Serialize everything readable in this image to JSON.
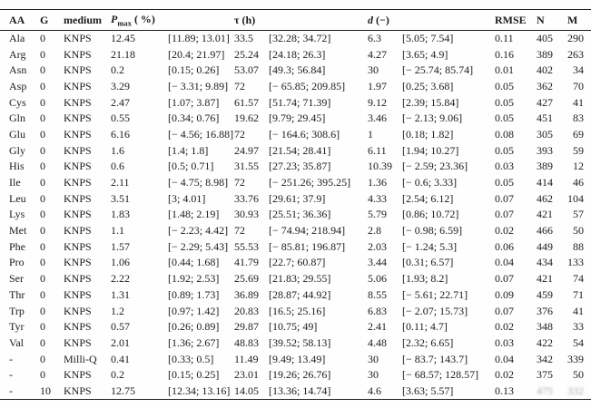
{
  "table": {
    "header": {
      "aa": "AA",
      "g": "G",
      "medium": "medium",
      "pmax_symbol": "P",
      "pmax_sub": "max",
      "pmax_unit": " ( %)",
      "tau_symbol": "τ",
      "tau_unit": " (h)",
      "d_symbol": "d",
      "d_unit": " (−)",
      "rmse": "RMSE",
      "n": "N",
      "m": "M"
    },
    "rows": [
      {
        "aa": "Ala",
        "g": "0",
        "medium": "KNPS",
        "pmax": "12.45",
        "pmax_ci": "[11.89; 13.01]",
        "tau": "33.5",
        "tau_ci": "[32.28; 34.72]",
        "d": "6.3",
        "d_ci": "[5.05; 7.54]",
        "rmse": "0.11",
        "n": "405",
        "m": "290"
      },
      {
        "aa": "Arg",
        "g": "0",
        "medium": "KNPS",
        "pmax": "21.18",
        "pmax_ci": "[20.4; 21.97]",
        "tau": "25.24",
        "tau_ci": "[24.18; 26.3]",
        "d": "4.27",
        "d_ci": "[3.65; 4.9]",
        "rmse": "0.16",
        "n": "389",
        "m": "263"
      },
      {
        "aa": "Asn",
        "g": "0",
        "medium": "KNPS",
        "pmax": "0.2",
        "pmax_ci": "[0.15; 0.26]",
        "tau": "53.07",
        "tau_ci": "[49.3; 56.84]",
        "d": "30",
        "d_ci": "[− 25.74; 85.74]",
        "rmse": "0.01",
        "n": "402",
        "m": "34"
      },
      {
        "aa": "Asp",
        "g": "0",
        "medium": "KNPS",
        "pmax": "3.29",
        "pmax_ci": "[− 3.31; 9.89]",
        "tau": "72",
        "tau_ci": "[− 65.85; 209.85]",
        "d": "1.97",
        "d_ci": "[0.25; 3.68]",
        "rmse": "0.05",
        "n": "362",
        "m": "70"
      },
      {
        "aa": "Cys",
        "g": "0",
        "medium": "KNPS",
        "pmax": "2.47",
        "pmax_ci": "[1.07; 3.87]",
        "tau": "61.57",
        "tau_ci": "[51.74; 71.39]",
        "d": "9.12",
        "d_ci": "[2.39; 15.84]",
        "rmse": "0.05",
        "n": "427",
        "m": "41"
      },
      {
        "aa": "Gln",
        "g": "0",
        "medium": "KNPS",
        "pmax": "0.55",
        "pmax_ci": "[0.34; 0.76]",
        "tau": "19.62",
        "tau_ci": "[9.79; 29.45]",
        "d": "3.46",
        "d_ci": "[− 2.13; 9.06]",
        "rmse": "0.05",
        "n": "451",
        "m": "83"
      },
      {
        "aa": "Glu",
        "g": "0",
        "medium": "KNPS",
        "pmax": "6.16",
        "pmax_ci": "[− 4.56; 16.88]",
        "tau": "72",
        "tau_ci": "[− 164.6; 308.6]",
        "d": "1",
        "d_ci": "[0.18; 1.82]",
        "rmse": "0.08",
        "n": "305",
        "m": "69"
      },
      {
        "aa": "Gly",
        "g": "0",
        "medium": "KNPS",
        "pmax": "1.6",
        "pmax_ci": "[1.4; 1.8]",
        "tau": "24.97",
        "tau_ci": "[21.54; 28.41]",
        "d": "6.11",
        "d_ci": "[1.94; 10.27]",
        "rmse": "0.05",
        "n": "393",
        "m": "59"
      },
      {
        "aa": "His",
        "g": "0",
        "medium": "KNPS",
        "pmax": "0.6",
        "pmax_ci": "[0.5; 0.71]",
        "tau": "31.55",
        "tau_ci": "[27.23; 35.87]",
        "d": "10.39",
        "d_ci": "[− 2.59; 23.36]",
        "rmse": "0.03",
        "n": "389",
        "m": "12"
      },
      {
        "aa": "Ile",
        "g": "0",
        "medium": "KNPS",
        "pmax": "2.11",
        "pmax_ci": "[− 4.75; 8.98]",
        "tau": "72",
        "tau_ci": "[− 251.26; 395.25]",
        "d": "1.36",
        "d_ci": "[− 0.6; 3.33]",
        "rmse": "0.05",
        "n": "414",
        "m": "46"
      },
      {
        "aa": "Leu",
        "g": "0",
        "medium": "KNPS",
        "pmax": "3.51",
        "pmax_ci": "[3; 4.01]",
        "tau": "33.76",
        "tau_ci": "[29.61; 37.9]",
        "d": "4.33",
        "d_ci": "[2.54; 6.12]",
        "rmse": "0.07",
        "n": "462",
        "m": "104"
      },
      {
        "aa": "Lys",
        "g": "0",
        "medium": "KNPS",
        "pmax": "1.83",
        "pmax_ci": "[1.48; 2.19]",
        "tau": "30.93",
        "tau_ci": "[25.51; 36.36]",
        "d": "5.79",
        "d_ci": "[0.86; 10.72]",
        "rmse": "0.07",
        "n": "421",
        "m": "57"
      },
      {
        "aa": "Met",
        "g": "0",
        "medium": "KNPS",
        "pmax": "1.1",
        "pmax_ci": "[− 2.23; 4.42]",
        "tau": "72",
        "tau_ci": "[− 74.94; 218.94]",
        "d": "2.8",
        "d_ci": "[− 0.98; 6.59]",
        "rmse": "0.02",
        "n": "466",
        "m": "50"
      },
      {
        "aa": "Phe",
        "g": "0",
        "medium": "KNPS",
        "pmax": "1.57",
        "pmax_ci": "[− 2.29; 5.43]",
        "tau": "55.53",
        "tau_ci": "[− 85.81; 196.87]",
        "d": "2.03",
        "d_ci": "[− 1.24; 5.3]",
        "rmse": "0.06",
        "n": "449",
        "m": "88"
      },
      {
        "aa": "Pro",
        "g": "0",
        "medium": "KNPS",
        "pmax": "1.06",
        "pmax_ci": "[0.44; 1.68]",
        "tau": "41.79",
        "tau_ci": "[22.7; 60.87]",
        "d": "3.44",
        "d_ci": "[0.31; 6.57]",
        "rmse": "0.04",
        "n": "434",
        "m": "133"
      },
      {
        "aa": "Ser",
        "g": "0",
        "medium": "KNPS",
        "pmax": "2.22",
        "pmax_ci": "[1.92; 2.53]",
        "tau": "25.69",
        "tau_ci": "[21.83; 29.55]",
        "d": "5.06",
        "d_ci": "[1.93; 8.2]",
        "rmse": "0.07",
        "n": "421",
        "m": "74"
      },
      {
        "aa": "Thr",
        "g": "0",
        "medium": "KNPS",
        "pmax": "1.31",
        "pmax_ci": "[0.89; 1.73]",
        "tau": "36.89",
        "tau_ci": "[28.87; 44.92]",
        "d": "8.55",
        "d_ci": "[− 5.61; 22.71]",
        "rmse": "0.09",
        "n": "459",
        "m": "71"
      },
      {
        "aa": "Trp",
        "g": "0",
        "medium": "KNPS",
        "pmax": "1.2",
        "pmax_ci": "[0.97; 1.42]",
        "tau": "20.83",
        "tau_ci": "[16.5; 25.16]",
        "d": "6.83",
        "d_ci": "[− 2.07; 15.73]",
        "rmse": "0.07",
        "n": "376",
        "m": "41"
      },
      {
        "aa": "Tyr",
        "g": "0",
        "medium": "KNPS",
        "pmax": "0.57",
        "pmax_ci": "[0.26; 0.89]",
        "tau": "29.87",
        "tau_ci": "[10.75; 49]",
        "d": "2.41",
        "d_ci": "[0.11; 4.7]",
        "rmse": "0.02",
        "n": "348",
        "m": "33"
      },
      {
        "aa": "Val",
        "g": "0",
        "medium": "KNPS",
        "pmax": "2.01",
        "pmax_ci": "[1.36; 2.67]",
        "tau": "48.83",
        "tau_ci": "[39.52; 58.13]",
        "d": "4.48",
        "d_ci": "[2.32; 6.65]",
        "rmse": "0.03",
        "n": "422",
        "m": "54"
      },
      {
        "aa": "-",
        "g": "0",
        "medium": "Milli-Q",
        "pmax": "0.41",
        "pmax_ci": "[0.33; 0.5]",
        "tau": "11.49",
        "tau_ci": "[9.49; 13.49]",
        "d": "30",
        "d_ci": "[− 83.7; 143.7]",
        "rmse": "0.04",
        "n": "342",
        "m": "339"
      },
      {
        "aa": "-",
        "g": "0",
        "medium": "KNPS",
        "pmax": "0.2",
        "pmax_ci": "[0.15; 0.25]",
        "tau": "23.01",
        "tau_ci": "[19.26; 26.76]",
        "d": "30",
        "d_ci": "[− 68.57; 128.57]",
        "rmse": "0.02",
        "n": "375",
        "m": "50"
      },
      {
        "aa": "-",
        "g": "10",
        "medium": "KNPS",
        "pmax": "12.75",
        "pmax_ci": "[12.34; 13.16]",
        "tau": "14.05",
        "tau_ci": "[13.36; 14.74]",
        "d": "4.6",
        "d_ci": "[3.63; 5.57]",
        "rmse": "0.13",
        "n": "475",
        "m": "332",
        "obscured_cols": [
          "n-cell",
          "m-cell"
        ]
      }
    ]
  }
}
